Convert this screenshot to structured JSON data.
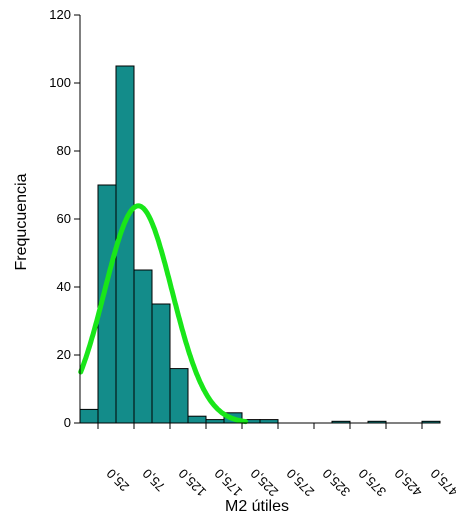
{
  "chart_data": {
    "type": "bar",
    "subtype": "histogram",
    "title": "",
    "xlabel": "M2 útiles",
    "ylabel": "Frequcuencia",
    "ylim": [
      0,
      120
    ],
    "yticks": [
      0,
      20,
      40,
      60,
      80,
      100,
      120
    ],
    "xlim": [
      0,
      500
    ],
    "xticks": [
      25,
      75,
      125,
      175,
      225,
      275,
      325,
      375,
      425,
      475
    ],
    "xtick_labels": [
      "25,0",
      "75,0",
      "125,0",
      "175,0",
      "225,0",
      "275,0",
      "325,0",
      "375,0",
      "425,0",
      "475,0"
    ],
    "bin_width": 25,
    "bins": [
      {
        "x": 0,
        "value": 4
      },
      {
        "x": 25,
        "value": 70
      },
      {
        "x": 50,
        "value": 105
      },
      {
        "x": 75,
        "value": 45
      },
      {
        "x": 100,
        "value": 35
      },
      {
        "x": 125,
        "value": 16
      },
      {
        "x": 150,
        "value": 2
      },
      {
        "x": 175,
        "value": 1
      },
      {
        "x": 200,
        "value": 3
      },
      {
        "x": 225,
        "value": 1
      },
      {
        "x": 250,
        "value": 1
      },
      {
        "x": 350,
        "value": 0.5
      },
      {
        "x": 400,
        "value": 0.5
      },
      {
        "x": 475,
        "value": 0.5
      }
    ],
    "normal_curve": {
      "mean": 81,
      "sd": 47,
      "n": 301
    },
    "colors": {
      "bar": "#138c8a",
      "curve": "#19e619",
      "axis": "#000000"
    },
    "grid": false,
    "legend": "none"
  }
}
